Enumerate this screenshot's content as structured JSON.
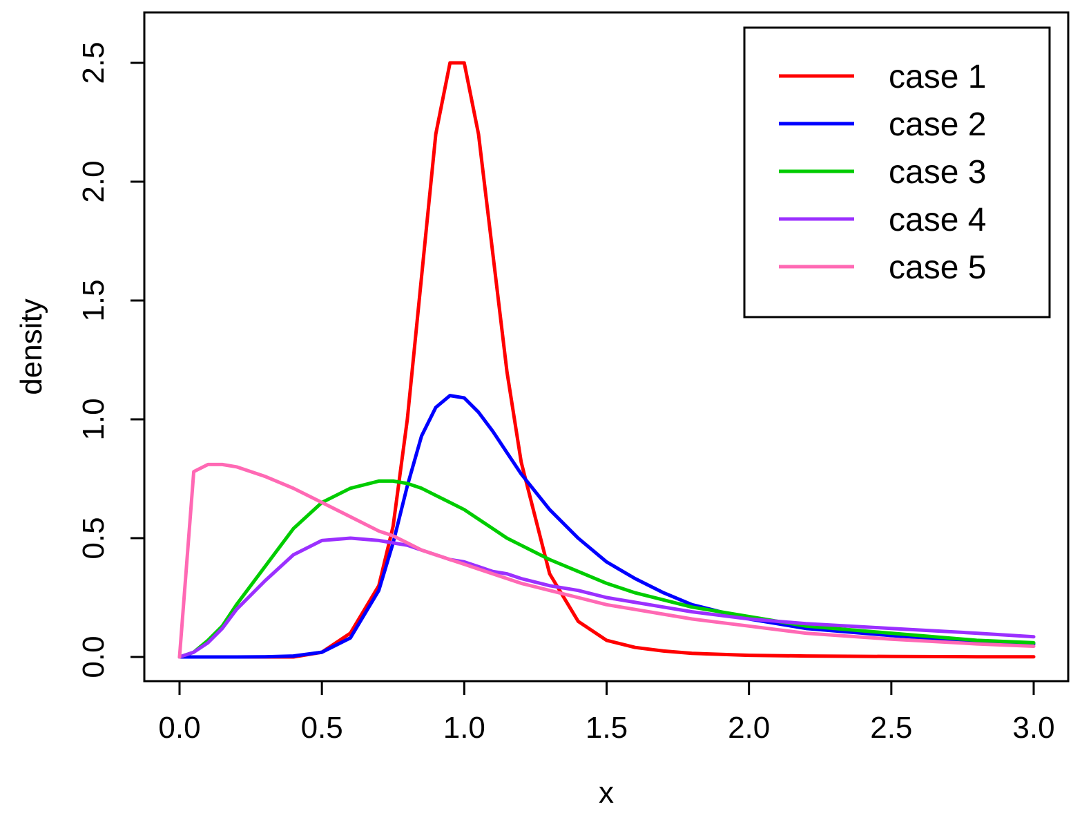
{
  "chart_data": {
    "type": "line",
    "title": "",
    "xlabel": "x",
    "ylabel": "density",
    "xlim": [
      -0.12,
      3.12
    ],
    "ylim": [
      -0.1,
      2.7
    ],
    "xticks": [
      "0.0",
      "0.5",
      "1.0",
      "1.5",
      "2.0",
      "2.5",
      "3.0"
    ],
    "yticks": [
      "0.0",
      "0.5",
      "1.0",
      "1.5",
      "2.0",
      "2.5"
    ],
    "legend_position": "top-right",
    "grid": false,
    "x": [
      0,
      0.05,
      0.1,
      0.15,
      0.2,
      0.3,
      0.4,
      0.5,
      0.6,
      0.7,
      0.75,
      0.8,
      0.85,
      0.9,
      0.95,
      1.0,
      1.05,
      1.1,
      1.15,
      1.2,
      1.3,
      1.4,
      1.5,
      1.6,
      1.7,
      1.8,
      2.0,
      2.2,
      2.5,
      2.8,
      3.0
    ],
    "series": [
      {
        "name": "case 1",
        "color": "#ff0000",
        "values": [
          0,
          0,
          0,
          0,
          0,
          0,
          0,
          0.02,
          0.1,
          0.3,
          0.55,
          1.0,
          1.6,
          2.2,
          2.5,
          2.5,
          2.2,
          1.7,
          1.2,
          0.82,
          0.35,
          0.15,
          0.07,
          0.04,
          0.025,
          0.015,
          0.007,
          0.004,
          0.002,
          0.001,
          0.001
        ]
      },
      {
        "name": "case 2",
        "color": "#0000ff",
        "values": [
          0,
          0,
          0,
          0,
          0,
          0.001,
          0.004,
          0.02,
          0.08,
          0.28,
          0.48,
          0.72,
          0.93,
          1.05,
          1.1,
          1.09,
          1.03,
          0.95,
          0.86,
          0.77,
          0.62,
          0.5,
          0.4,
          0.33,
          0.27,
          0.22,
          0.16,
          0.12,
          0.09,
          0.065,
          0.055
        ]
      },
      {
        "name": "case 3",
        "color": "#00cc00",
        "values": [
          0,
          0.02,
          0.07,
          0.13,
          0.22,
          0.38,
          0.54,
          0.65,
          0.71,
          0.74,
          0.74,
          0.73,
          0.71,
          0.68,
          0.65,
          0.62,
          0.58,
          0.54,
          0.5,
          0.47,
          0.41,
          0.36,
          0.31,
          0.27,
          0.24,
          0.21,
          0.17,
          0.13,
          0.1,
          0.07,
          0.06
        ]
      },
      {
        "name": "case 4",
        "color": "#9b30ff",
        "values": [
          0,
          0.02,
          0.06,
          0.12,
          0.2,
          0.32,
          0.43,
          0.49,
          0.5,
          0.49,
          0.48,
          0.47,
          0.45,
          0.43,
          0.41,
          0.4,
          0.38,
          0.36,
          0.35,
          0.33,
          0.3,
          0.28,
          0.25,
          0.23,
          0.21,
          0.19,
          0.16,
          0.14,
          0.12,
          0.1,
          0.085
        ]
      },
      {
        "name": "case 5",
        "color": "#ff69b4",
        "values": [
          0,
          0.78,
          0.81,
          0.81,
          0.8,
          0.76,
          0.71,
          0.65,
          0.59,
          0.53,
          0.51,
          0.48,
          0.45,
          0.43,
          0.41,
          0.39,
          0.37,
          0.35,
          0.33,
          0.31,
          0.28,
          0.25,
          0.22,
          0.2,
          0.18,
          0.16,
          0.13,
          0.1,
          0.075,
          0.055,
          0.045
        ]
      }
    ]
  }
}
